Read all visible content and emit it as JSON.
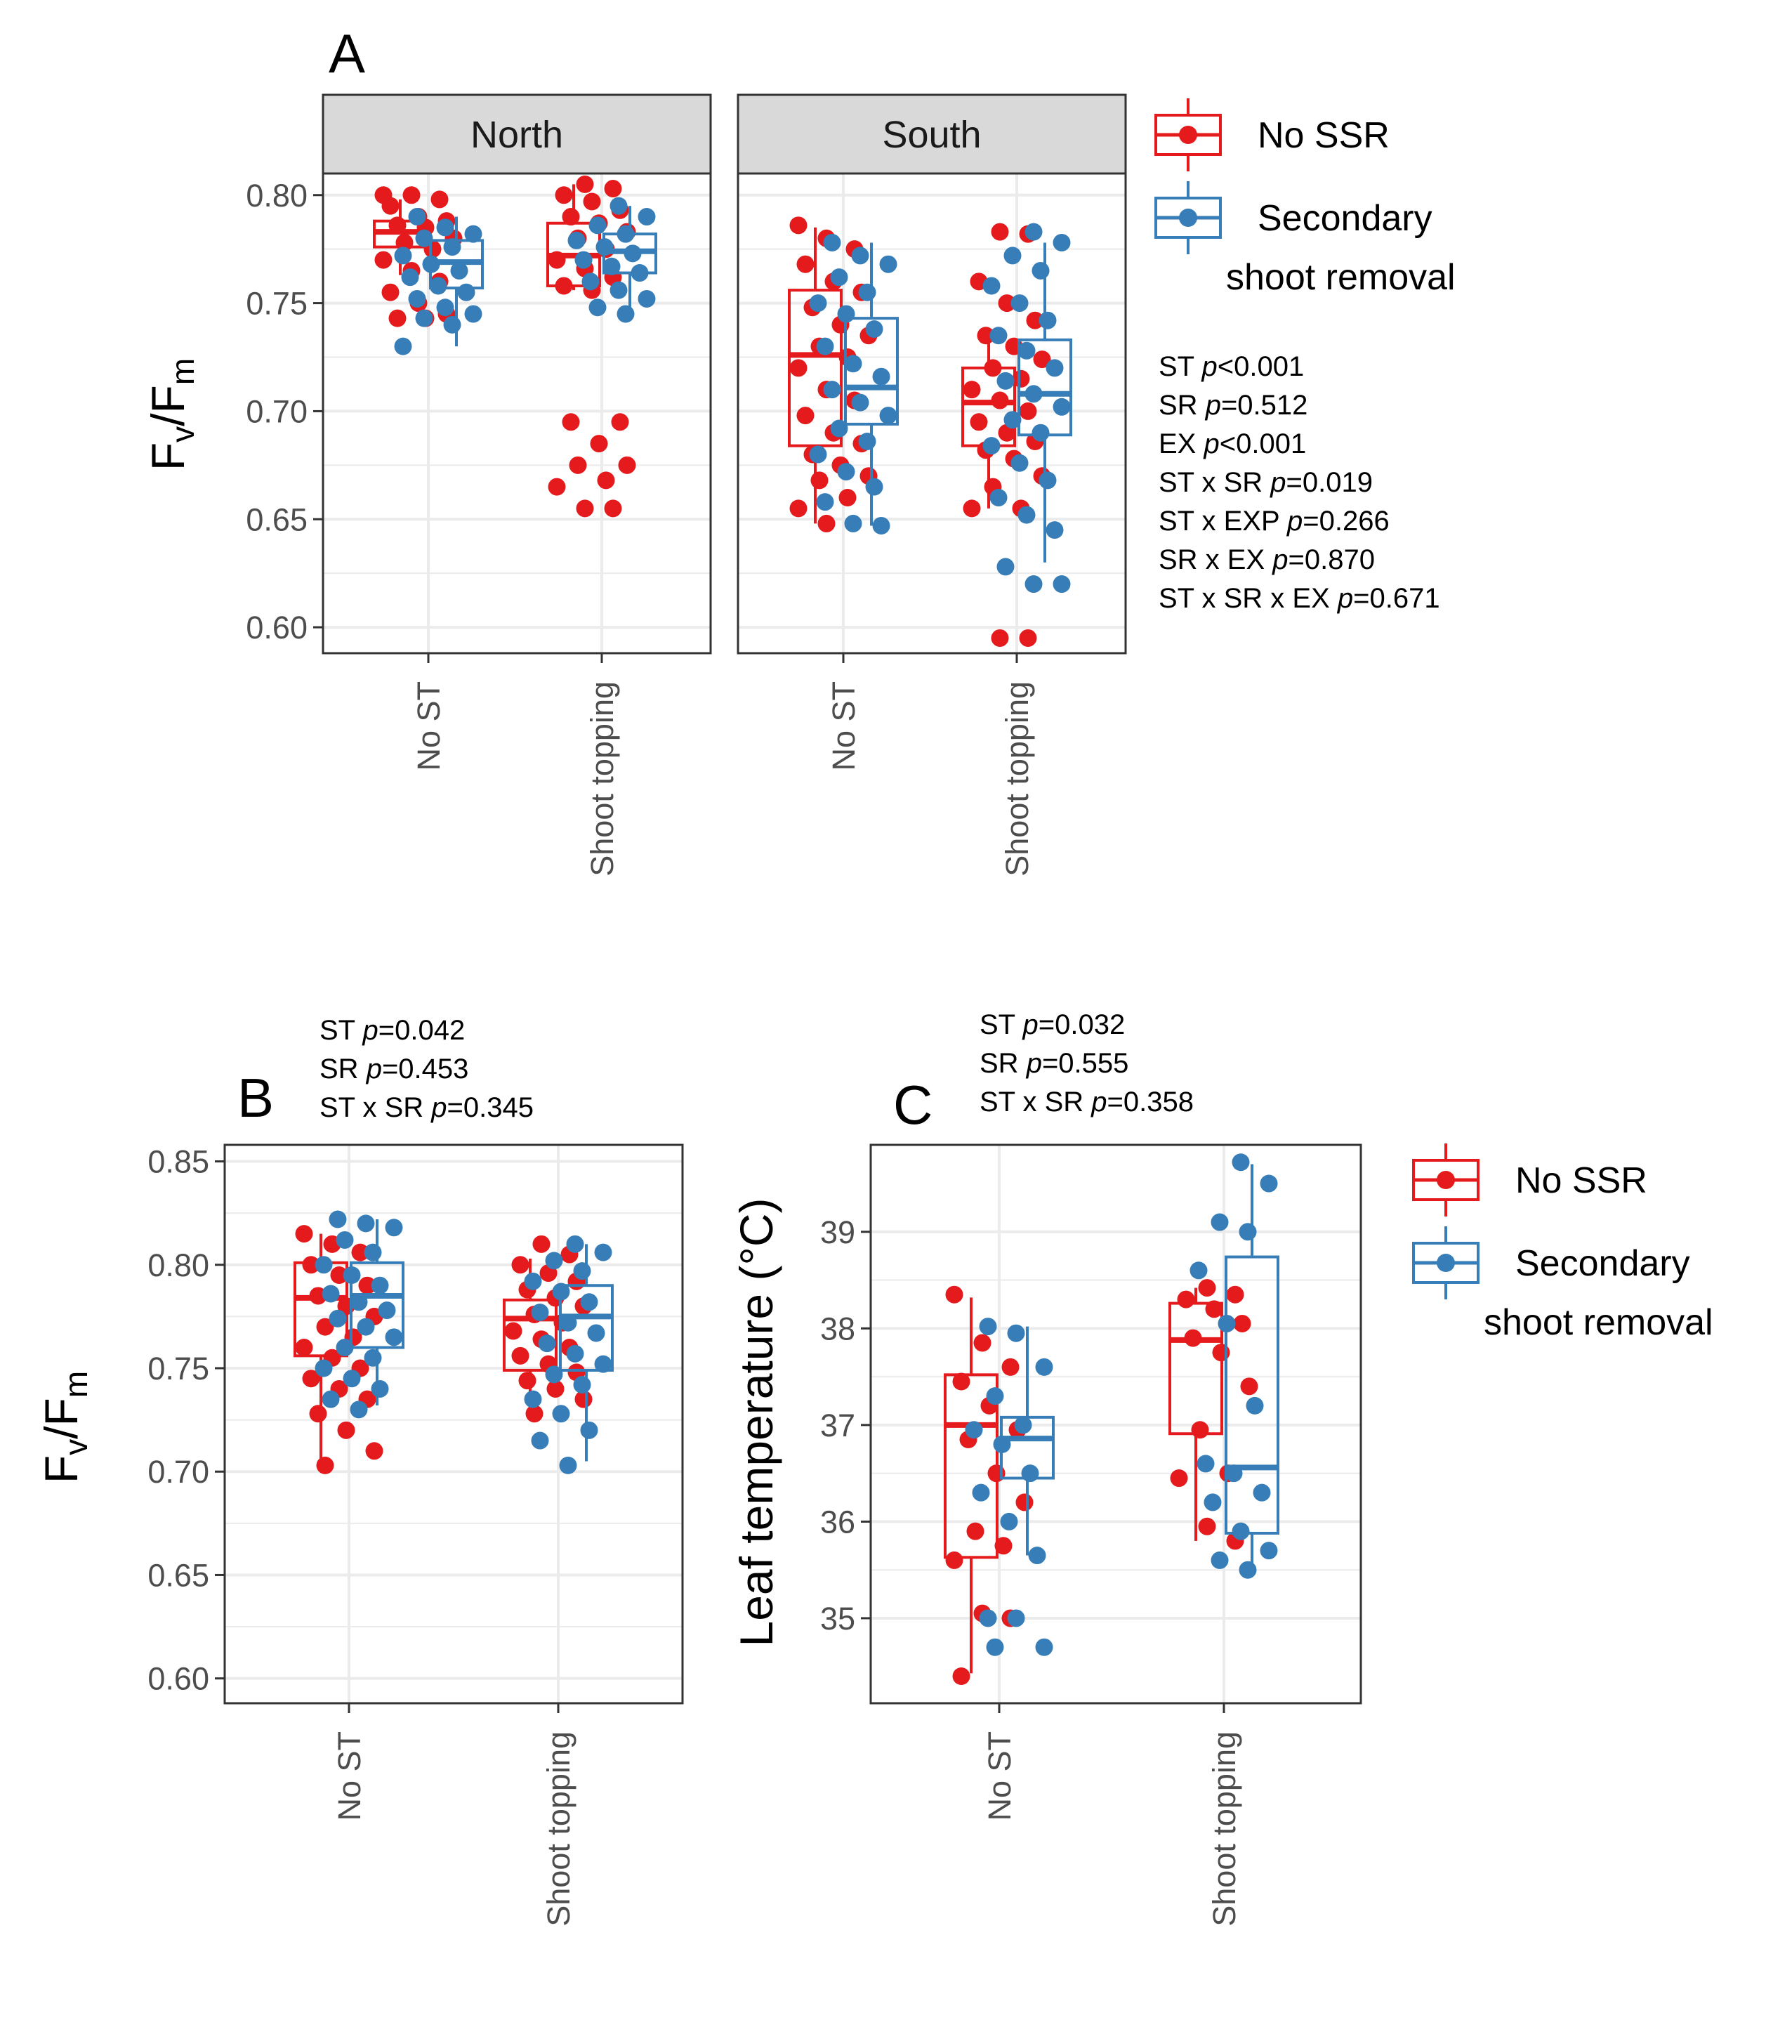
{
  "colors": {
    "no_ssr": "#E41A1C",
    "ssr": "#377EB8",
    "grid": "#EBEBEB",
    "strip_bg": "#D9D9D9"
  },
  "legend": {
    "entries": [
      "No SSR",
      "Secondary",
      "shoot removal"
    ]
  },
  "chart_data": [
    {
      "panel": "A",
      "type": "boxplot",
      "facets": [
        "North",
        "South"
      ],
      "categories": [
        "No ST",
        "Shoot topping"
      ],
      "ylabel": {
        "main": "F",
        "sub1": "v",
        "slash": "/F",
        "sub2": "m"
      },
      "ylim": [
        0.588,
        0.81
      ],
      "yticks": [
        0.6,
        0.65,
        0.7,
        0.75,
        0.8
      ],
      "ytick_labels": [
        "0.60",
        "0.65",
        "0.70",
        "0.75",
        "0.80"
      ],
      "stats": [
        {
          "term": "ST ",
          "p": "p",
          "val": "<0.001"
        },
        {
          "term": "SR ",
          "p": "p",
          "val": "=0.512"
        },
        {
          "term": "EX ",
          "p": "p",
          "val": "<0.001"
        },
        {
          "term": "ST x SR ",
          "p": "p",
          "val": "=0.019"
        },
        {
          "term": "ST x EXP ",
          "p": "p",
          "val": "=0.266"
        },
        {
          "term": "SR x EX ",
          "p": "p",
          "val": "=0.870"
        },
        {
          "term": "ST x SR x EX ",
          "p": "p",
          "val": "=0.671"
        }
      ],
      "series": [
        {
          "name": "No SSR",
          "facet": "North",
          "category": "No ST",
          "q1": 0.776,
          "median": 0.783,
          "q3": 0.788,
          "whisker_low": 0.763,
          "whisker_high": 0.798,
          "points": [
            0.8,
            0.8,
            0.798,
            0.795,
            0.79,
            0.788,
            0.786,
            0.785,
            0.78,
            0.778,
            0.775,
            0.77,
            0.765,
            0.76,
            0.755,
            0.75,
            0.745,
            0.743,
            0.743
          ]
        },
        {
          "name": "Secondary shoot removal",
          "facet": "North",
          "category": "No ST",
          "q1": 0.757,
          "median": 0.769,
          "q3": 0.779,
          "whisker_low": 0.73,
          "whisker_high": 0.79,
          "points": [
            0.79,
            0.785,
            0.782,
            0.78,
            0.776,
            0.772,
            0.768,
            0.765,
            0.762,
            0.758,
            0.755,
            0.752,
            0.748,
            0.745,
            0.743,
            0.74,
            0.73
          ]
        },
        {
          "name": "No SSR",
          "facet": "North",
          "category": "Shoot topping",
          "q1": 0.758,
          "median": 0.772,
          "q3": 0.787,
          "whisker_low": 0.756,
          "whisker_high": 0.805,
          "points": [
            0.805,
            0.803,
            0.8,
            0.797,
            0.793,
            0.79,
            0.787,
            0.783,
            0.78,
            0.775,
            0.77,
            0.766,
            0.762,
            0.758,
            0.756,
            0.695,
            0.695,
            0.685,
            0.675,
            0.675,
            0.668,
            0.665,
            0.655,
            0.655
          ]
        },
        {
          "name": "Secondary shoot removal",
          "facet": "North",
          "category": "Shoot topping",
          "q1": 0.764,
          "median": 0.774,
          "q3": 0.782,
          "whisker_low": 0.745,
          "whisker_high": 0.795,
          "points": [
            0.795,
            0.79,
            0.786,
            0.782,
            0.779,
            0.776,
            0.773,
            0.77,
            0.767,
            0.764,
            0.76,
            0.756,
            0.752,
            0.748,
            0.745
          ]
        },
        {
          "name": "No SSR",
          "facet": "South",
          "category": "No ST",
          "q1": 0.684,
          "median": 0.726,
          "q3": 0.756,
          "whisker_low": 0.648,
          "whisker_high": 0.785,
          "points": [
            0.786,
            0.78,
            0.775,
            0.768,
            0.76,
            0.755,
            0.748,
            0.74,
            0.735,
            0.73,
            0.725,
            0.72,
            0.71,
            0.705,
            0.698,
            0.69,
            0.685,
            0.68,
            0.675,
            0.67,
            0.668,
            0.66,
            0.655,
            0.648
          ]
        },
        {
          "name": "Secondary shoot removal",
          "facet": "South",
          "category": "No ST",
          "q1": 0.694,
          "median": 0.711,
          "q3": 0.743,
          "whisker_low": 0.647,
          "whisker_high": 0.778,
          "points": [
            0.778,
            0.772,
            0.768,
            0.762,
            0.755,
            0.75,
            0.745,
            0.738,
            0.73,
            0.722,
            0.716,
            0.71,
            0.704,
            0.698,
            0.692,
            0.686,
            0.68,
            0.672,
            0.665,
            0.658,
            0.648,
            0.647
          ]
        },
        {
          "name": "No SSR",
          "facet": "South",
          "category": "Shoot topping",
          "q1": 0.684,
          "median": 0.704,
          "q3": 0.72,
          "whisker_low": 0.655,
          "whisker_high": 0.735,
          "points": [
            0.783,
            0.782,
            0.76,
            0.75,
            0.742,
            0.735,
            0.73,
            0.724,
            0.72,
            0.715,
            0.71,
            0.705,
            0.7,
            0.695,
            0.69,
            0.686,
            0.682,
            0.678,
            0.67,
            0.665,
            0.655,
            0.655,
            0.595,
            0.595
          ]
        },
        {
          "name": "Secondary shoot removal",
          "facet": "South",
          "category": "Shoot topping",
          "q1": 0.689,
          "median": 0.708,
          "q3": 0.733,
          "whisker_low": 0.63,
          "whisker_high": 0.778,
          "points": [
            0.783,
            0.778,
            0.772,
            0.765,
            0.758,
            0.75,
            0.742,
            0.735,
            0.728,
            0.72,
            0.714,
            0.708,
            0.702,
            0.696,
            0.69,
            0.684,
            0.676,
            0.668,
            0.66,
            0.652,
            0.645,
            0.628,
            0.62,
            0.62
          ]
        }
      ]
    },
    {
      "panel": "B",
      "type": "boxplot",
      "categories": [
        "No ST",
        "Shoot topping"
      ],
      "ylabel": {
        "main": "F",
        "sub1": "v",
        "slash": "/F",
        "sub2": "m"
      },
      "ylim": [
        0.588,
        0.858
      ],
      "yticks": [
        0.6,
        0.65,
        0.7,
        0.75,
        0.8,
        0.85
      ],
      "ytick_labels": [
        "0.60",
        "0.65",
        "0.70",
        "0.75",
        "0.80",
        "0.85"
      ],
      "stats": [
        {
          "term": "ST ",
          "p": "p",
          "val": "=0.042"
        },
        {
          "term": "SR ",
          "p": "p",
          "val": "=0.453"
        },
        {
          "term": "ST x SR ",
          "p": "p",
          "val": "=0.345"
        }
      ],
      "series": [
        {
          "name": "No SSR",
          "category": "No ST",
          "q1": 0.756,
          "median": 0.784,
          "q3": 0.801,
          "whisker_low": 0.703,
          "whisker_high": 0.815,
          "points": [
            0.815,
            0.81,
            0.806,
            0.8,
            0.795,
            0.79,
            0.785,
            0.78,
            0.775,
            0.77,
            0.765,
            0.76,
            0.755,
            0.75,
            0.745,
            0.74,
            0.735,
            0.728,
            0.72,
            0.71,
            0.703
          ]
        },
        {
          "name": "Secondary shoot removal",
          "category": "No ST",
          "q1": 0.76,
          "median": 0.785,
          "q3": 0.801,
          "whisker_low": 0.732,
          "whisker_high": 0.822,
          "points": [
            0.822,
            0.82,
            0.818,
            0.812,
            0.806,
            0.8,
            0.795,
            0.79,
            0.786,
            0.782,
            0.778,
            0.774,
            0.77,
            0.765,
            0.76,
            0.755,
            0.75,
            0.745,
            0.74,
            0.735,
            0.73
          ]
        },
        {
          "name": "No SSR",
          "category": "Shoot topping",
          "q1": 0.749,
          "median": 0.774,
          "q3": 0.783,
          "whisker_low": 0.728,
          "whisker_high": 0.803,
          "points": [
            0.81,
            0.805,
            0.8,
            0.796,
            0.792,
            0.788,
            0.784,
            0.78,
            0.776,
            0.772,
            0.768,
            0.764,
            0.76,
            0.756,
            0.752,
            0.748,
            0.744,
            0.74,
            0.735,
            0.728
          ]
        },
        {
          "name": "Secondary shoot removal",
          "category": "Shoot topping",
          "q1": 0.749,
          "median": 0.775,
          "q3": 0.79,
          "whisker_low": 0.705,
          "whisker_high": 0.81,
          "points": [
            0.81,
            0.806,
            0.802,
            0.797,
            0.792,
            0.787,
            0.782,
            0.777,
            0.772,
            0.767,
            0.762,
            0.757,
            0.752,
            0.747,
            0.742,
            0.735,
            0.728,
            0.72,
            0.715,
            0.703
          ]
        }
      ]
    },
    {
      "panel": "C",
      "type": "boxplot",
      "categories": [
        "No ST",
        "Shoot topping"
      ],
      "ylabel": {
        "main": "Leaf temperature (°C)"
      },
      "ylim": [
        34.12,
        39.9
      ],
      "yticks": [
        35,
        36,
        37,
        38,
        39
      ],
      "ytick_labels": [
        "35",
        "36",
        "37",
        "38",
        "39"
      ],
      "stats": [
        {
          "term": "ST ",
          "p": "p",
          "val": "=0.032"
        },
        {
          "term": "SR ",
          "p": "p",
          "val": "=0.555"
        },
        {
          "term": "ST x SR ",
          "p": "p",
          "val": "=0.358"
        }
      ],
      "series": [
        {
          "name": "No SSR",
          "category": "No ST",
          "q1": 35.63,
          "median": 37.0,
          "q3": 37.52,
          "whisker_low": 34.43,
          "whisker_high": 38.32,
          "points": [
            38.35,
            37.85,
            37.6,
            37.45,
            37.2,
            36.95,
            36.85,
            36.5,
            36.2,
            35.9,
            35.75,
            35.6,
            35.05,
            35.0,
            34.4
          ]
        },
        {
          "name": "Secondary shoot removal",
          "category": "No ST",
          "q1": 36.45,
          "median": 36.86,
          "q3": 37.08,
          "whisker_low": 35.65,
          "whisker_high": 38.02,
          "points": [
            38.02,
            37.95,
            37.6,
            37.3,
            37.0,
            36.95,
            36.8,
            36.5,
            36.3,
            36.0,
            35.65,
            35.0,
            35.0,
            34.7,
            34.7
          ]
        },
        {
          "name": "No SSR",
          "category": "Shoot topping",
          "q1": 36.91,
          "median": 37.88,
          "q3": 38.26,
          "whisker_low": 35.8,
          "whisker_high": 38.42,
          "points": [
            38.42,
            38.35,
            38.3,
            38.2,
            38.05,
            37.9,
            37.75,
            37.4,
            36.95,
            36.5,
            36.45,
            35.95,
            35.8
          ]
        },
        {
          "name": "Secondary shoot removal",
          "category": "Shoot topping",
          "q1": 35.88,
          "median": 36.56,
          "q3": 38.74,
          "whisker_low": 35.5,
          "whisker_high": 39.7,
          "points": [
            39.72,
            39.5,
            39.1,
            39.0,
            38.6,
            38.05,
            37.2,
            36.6,
            36.5,
            36.3,
            36.2,
            35.9,
            35.7,
            35.6,
            35.5
          ]
        }
      ]
    }
  ],
  "panel_letters": [
    "A",
    "B",
    "C"
  ]
}
